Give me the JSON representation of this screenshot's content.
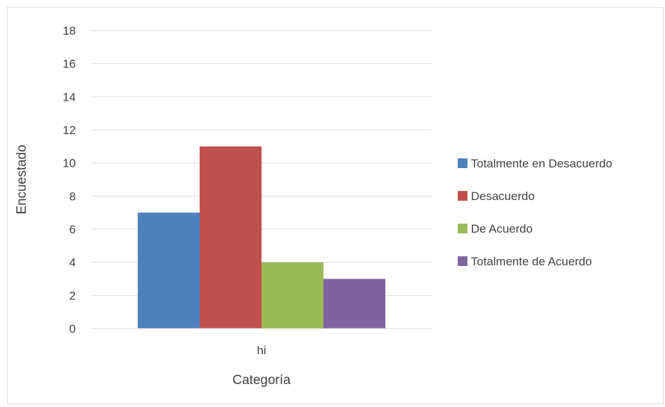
{
  "chart_data": {
    "type": "bar",
    "title": "",
    "xlabel": "Categoría",
    "ylabel": "Encuestado",
    "categories": [
      "hi"
    ],
    "ylim": [
      0,
      18
    ],
    "yticks": [
      "0",
      "2",
      "4",
      "6",
      "8",
      "10",
      "12",
      "14",
      "16",
      "18"
    ],
    "grid": true,
    "legend_position": "right",
    "series": [
      {
        "name": "Totalmente en Desacuerdo",
        "values": [
          7
        ],
        "color": "#4f81bd"
      },
      {
        "name": "Desacuerdo",
        "values": [
          11
        ],
        "color": "#c0504d"
      },
      {
        "name": "De Acuerdo",
        "values": [
          4
        ],
        "color": "#9bbb59"
      },
      {
        "name": "Totalmente de Acuerdo",
        "values": [
          3
        ],
        "color": "#8064a2"
      }
    ]
  }
}
